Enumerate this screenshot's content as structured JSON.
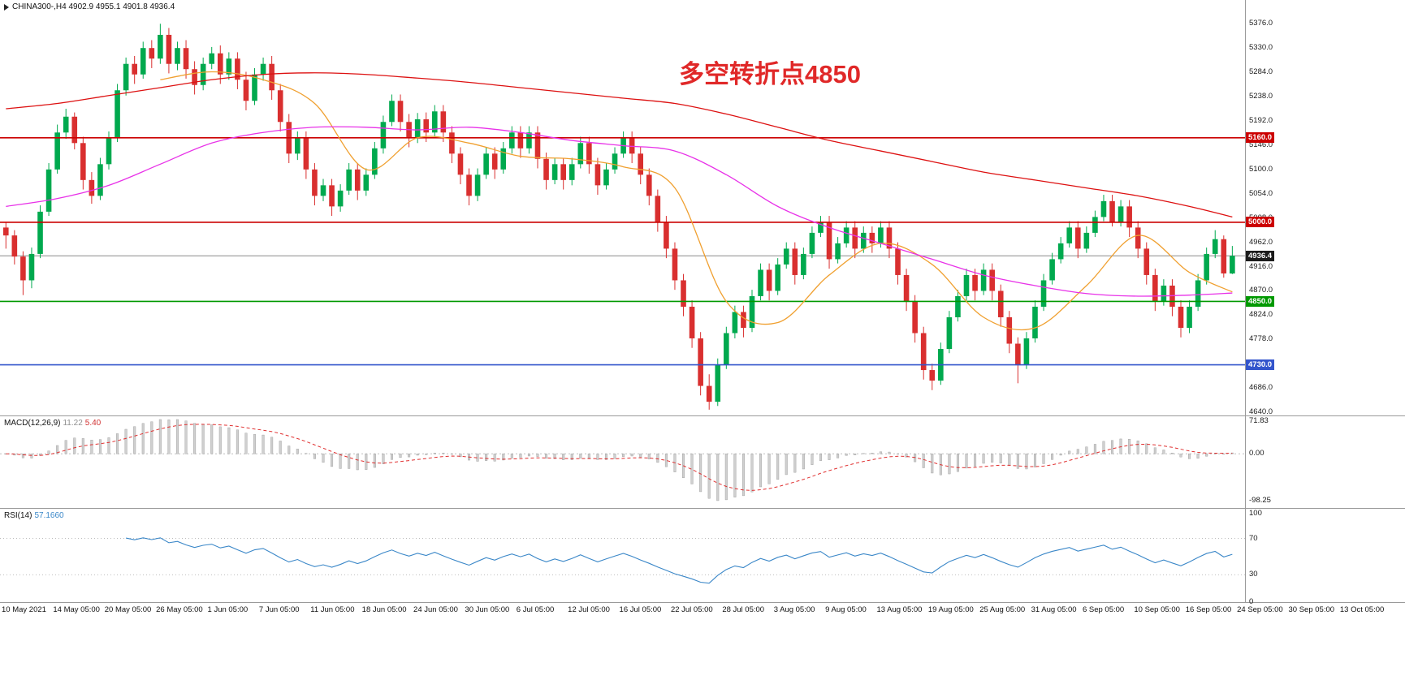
{
  "quote_bar": {
    "display": "CHINA300-,H4 4902.9 4955.1 4901.8 4936.4"
  },
  "annotation": {
    "text": "多空转折点4850",
    "color": "#e02828"
  },
  "indicators": {
    "macd": {
      "title": "MACD(12,26,9)",
      "value_main": "11.22",
      "value_signal": "5.40"
    },
    "rsi": {
      "title": "RSI(14)",
      "value": "57.1660"
    }
  },
  "chart_data": {
    "type": "candlestick",
    "title": "CHINA300-,H4",
    "xlabel": "",
    "ylabel": "",
    "ylim": [
      4634,
      5421
    ],
    "y_ticks": [
      5376,
      5330,
      5284,
      5238,
      5192,
      5146,
      5100,
      5054,
      5008,
      4962,
      4916,
      4870,
      4824,
      4778,
      4732,
      4686,
      4640
    ],
    "x_labels": [
      "10 May 2021",
      "14 May 05:00",
      "20 May 05:00",
      "26 May 05:00",
      "1 Jun 05:00",
      "7 Jun 05:00",
      "11 Jun 05:00",
      "18 Jun 05:00",
      "24 Jun 05:00",
      "30 Jun 05:00",
      "6 Jul 05:00",
      "12 Jul 05:00",
      "16 Jul 05:00",
      "22 Jul 05:00",
      "28 Jul 05:00",
      "3 Aug 05:00",
      "9 Aug 05:00",
      "13 Aug 05:00",
      "19 Aug 05:00",
      "25 Aug 05:00",
      "31 Aug 05:00",
      "6 Sep 05:00",
      "10 Sep 05:00",
      "16 Sep 05:00",
      "24 Sep 05:00",
      "30 Sep 05:00",
      "13 Oct 05:00"
    ],
    "ohlc": [
      [
        4990,
        5000,
        4950,
        4975
      ],
      [
        4975,
        4985,
        4920,
        4935
      ],
      [
        4935,
        4945,
        4862,
        4890
      ],
      [
        4890,
        4952,
        4875,
        4940
      ],
      [
        4940,
        5032,
        4932,
        5020
      ],
      [
        5020,
        5112,
        5012,
        5100
      ],
      [
        5100,
        5185,
        5092,
        5170
      ],
      [
        5170,
        5215,
        5158,
        5200
      ],
      [
        5200,
        5208,
        5138,
        5150
      ],
      [
        5150,
        5162,
        5062,
        5080
      ],
      [
        5080,
        5095,
        5035,
        5050
      ],
      [
        5050,
        5122,
        5042,
        5110
      ],
      [
        5110,
        5172,
        5100,
        5160
      ],
      [
        5160,
        5262,
        5152,
        5250
      ],
      [
        5250,
        5312,
        5240,
        5300
      ],
      [
        5300,
        5315,
        5262,
        5280
      ],
      [
        5280,
        5342,
        5272,
        5330
      ],
      [
        5330,
        5345,
        5292,
        5310
      ],
      [
        5310,
        5376,
        5300,
        5355
      ],
      [
        5355,
        5368,
        5282,
        5300
      ],
      [
        5300,
        5342,
        5288,
        5330
      ],
      [
        5330,
        5345,
        5272,
        5290
      ],
      [
        5290,
        5305,
        5242,
        5260
      ],
      [
        5260,
        5312,
        5250,
        5300
      ],
      [
        5300,
        5332,
        5290,
        5320
      ],
      [
        5320,
        5335,
        5262,
        5280
      ],
      [
        5280,
        5322,
        5270,
        5310
      ],
      [
        5310,
        5322,
        5252,
        5270
      ],
      [
        5270,
        5285,
        5212,
        5230
      ],
      [
        5230,
        5292,
        5222,
        5280
      ],
      [
        5280,
        5312,
        5268,
        5300
      ],
      [
        5300,
        5315,
        5232,
        5250
      ],
      [
        5250,
        5262,
        5172,
        5190
      ],
      [
        5190,
        5205,
        5112,
        5130
      ],
      [
        5130,
        5172,
        5118,
        5160
      ],
      [
        5160,
        5172,
        5082,
        5100
      ],
      [
        5100,
        5112,
        5032,
        5050
      ],
      [
        5050,
        5082,
        5040,
        5070
      ],
      [
        5070,
        5082,
        5012,
        5030
      ],
      [
        5030,
        5072,
        5020,
        5060
      ],
      [
        5060,
        5112,
        5052,
        5100
      ],
      [
        5100,
        5112,
        5042,
        5060
      ],
      [
        5060,
        5102,
        5050,
        5090
      ],
      [
        5090,
        5152,
        5082,
        5140
      ],
      [
        5140,
        5202,
        5130,
        5190
      ],
      [
        5190,
        5242,
        5182,
        5230
      ],
      [
        5230,
        5242,
        5172,
        5190
      ],
      [
        5190,
        5205,
        5142,
        5160
      ],
      [
        5160,
        5207,
        5150,
        5195
      ],
      [
        5195,
        5208,
        5152,
        5170
      ],
      [
        5170,
        5222,
        5162,
        5210
      ],
      [
        5210,
        5222,
        5152,
        5170
      ],
      [
        5170,
        5182,
        5112,
        5130
      ],
      [
        5130,
        5142,
        5072,
        5090
      ],
      [
        5090,
        5102,
        5032,
        5050
      ],
      [
        5050,
        5102,
        5040,
        5090
      ],
      [
        5090,
        5142,
        5082,
        5130
      ],
      [
        5130,
        5142,
        5082,
        5100
      ],
      [
        5100,
        5152,
        5092,
        5140
      ],
      [
        5140,
        5182,
        5130,
        5170
      ],
      [
        5170,
        5182,
        5122,
        5140
      ],
      [
        5140,
        5182,
        5130,
        5170
      ],
      [
        5170,
        5182,
        5102,
        5120
      ],
      [
        5120,
        5132,
        5062,
        5080
      ],
      [
        5080,
        5122,
        5072,
        5110
      ],
      [
        5110,
        5122,
        5062,
        5080
      ],
      [
        5080,
        5122,
        5070,
        5110
      ],
      [
        5110,
        5162,
        5102,
        5150
      ],
      [
        5150,
        5162,
        5092,
        5110
      ],
      [
        5110,
        5122,
        5052,
        5070
      ],
      [
        5070,
        5112,
        5062,
        5100
      ],
      [
        5100,
        5142,
        5092,
        5130
      ],
      [
        5130,
        5172,
        5122,
        5160
      ],
      [
        5160,
        5172,
        5112,
        5130
      ],
      [
        5130,
        5142,
        5072,
        5090
      ],
      [
        5090,
        5102,
        5032,
        5050
      ],
      [
        5050,
        5062,
        4982,
        5000
      ],
      [
        5000,
        5012,
        4932,
        4950
      ],
      [
        4950,
        4962,
        4872,
        4890
      ],
      [
        4890,
        4902,
        4822,
        4840
      ],
      [
        4840,
        4852,
        4762,
        4780
      ],
      [
        4780,
        4792,
        4672,
        4690
      ],
      [
        4690,
        4712,
        4645,
        4660
      ],
      [
        4660,
        4742,
        4652,
        4730
      ],
      [
        4730,
        4802,
        4722,
        4790
      ],
      [
        4790,
        4842,
        4780,
        4830
      ],
      [
        4830,
        4842,
        4782,
        4800
      ],
      [
        4800,
        4872,
        4792,
        4860
      ],
      [
        4860,
        4922,
        4852,
        4910
      ],
      [
        4910,
        4922,
        4852,
        4870
      ],
      [
        4870,
        4932,
        4862,
        4920
      ],
      [
        4920,
        4962,
        4912,
        4950
      ],
      [
        4950,
        4962,
        4882,
        4900
      ],
      [
        4900,
        4952,
        4892,
        4940
      ],
      [
        4940,
        4992,
        4932,
        4980
      ],
      [
        4980,
        5012,
        4972,
        5000
      ],
      [
        5000,
        5012,
        4912,
        4930
      ],
      [
        4930,
        4972,
        4922,
        4960
      ],
      [
        4960,
        5002,
        4952,
        4990
      ],
      [
        4990,
        5002,
        4932,
        4950
      ],
      [
        4950,
        4992,
        4942,
        4980
      ],
      [
        4980,
        4992,
        4942,
        4960
      ],
      [
        4960,
        5002,
        4952,
        4990
      ],
      [
        4990,
        5002,
        4932,
        4950
      ],
      [
        4950,
        4962,
        4882,
        4900
      ],
      [
        4900,
        4912,
        4832,
        4850
      ],
      [
        4850,
        4862,
        4772,
        4790
      ],
      [
        4790,
        4802,
        4702,
        4720
      ],
      [
        4720,
        4732,
        4682,
        4700
      ],
      [
        4700,
        4772,
        4692,
        4760
      ],
      [
        4760,
        4832,
        4752,
        4820
      ],
      [
        4820,
        4872,
        4812,
        4860
      ],
      [
        4860,
        4912,
        4852,
        4900
      ],
      [
        4900,
        4912,
        4852,
        4870
      ],
      [
        4870,
        4922,
        4862,
        4910
      ],
      [
        4910,
        4922,
        4852,
        4870
      ],
      [
        4870,
        4882,
        4802,
        4820
      ],
      [
        4820,
        4832,
        4752,
        4770
      ],
      [
        4770,
        4782,
        4695,
        4730
      ],
      [
        4730,
        4792,
        4722,
        4780
      ],
      [
        4780,
        4852,
        4772,
        4840
      ],
      [
        4840,
        4902,
        4832,
        4890
      ],
      [
        4890,
        4942,
        4882,
        4930
      ],
      [
        4930,
        4972,
        4922,
        4960
      ],
      [
        4960,
        5002,
        4952,
        4990
      ],
      [
        4990,
        5002,
        4932,
        4950
      ],
      [
        4950,
        4992,
        4942,
        4980
      ],
      [
        4980,
        5022,
        4972,
        5010
      ],
      [
        5010,
        5052,
        5002,
        5040
      ],
      [
        5040,
        5052,
        4992,
        5000
      ],
      [
        5000,
        5042,
        4992,
        5030
      ],
      [
        5030,
        5042,
        4972,
        4990
      ],
      [
        4990,
        5002,
        4932,
        4950
      ],
      [
        4950,
        4962,
        4882,
        4900
      ],
      [
        4900,
        4912,
        4832,
        4850
      ],
      [
        4850,
        4892,
        4842,
        4880
      ],
      [
        4880,
        4892,
        4822,
        4840
      ],
      [
        4840,
        4852,
        4782,
        4800
      ],
      [
        4800,
        4852,
        4790,
        4840
      ],
      [
        4840,
        4902,
        4832,
        4890
      ],
      [
        4890,
        4952,
        4882,
        4940
      ],
      [
        4940,
        4985,
        4932,
        4968
      ],
      [
        4968,
        4975,
        4895,
        4903
      ],
      [
        4902.9,
        4955.1,
        4901.8,
        4936.4
      ]
    ],
    "overlays": [
      {
        "name": "ma-fast-line",
        "color": "#f0a030",
        "values": [
          null,
          null,
          null,
          5270,
          5285,
          5270,
          5225,
          5100,
          5160,
          5150,
          5125,
          5120,
          5105,
          5065,
          4850,
          4810,
          4900,
          4960,
          4920,
          4820,
          4800,
          4880,
          4975,
          4905,
          4868
        ]
      },
      {
        "name": "ma-mid-line",
        "color": "#e832e8",
        "values": [
          5030,
          5045,
          5070,
          5110,
          5150,
          5170,
          5180,
          5180,
          5175,
          5180,
          5170,
          5155,
          5145,
          5135,
          5090,
          5030,
          4990,
          4960,
          4930,
          4900,
          4880,
          4865,
          4860,
          4862,
          4866
        ]
      },
      {
        "name": "ma-slow-line",
        "color": "#dd1111",
        "values": [
          5215,
          5225,
          5240,
          5255,
          5270,
          5280,
          5283,
          5280,
          5273,
          5265,
          5255,
          5245,
          5235,
          5225,
          5205,
          5180,
          5155,
          5135,
          5115,
          5095,
          5080,
          5065,
          5050,
          5030,
          5010
        ]
      }
    ],
    "levels": [
      {
        "value": 5160.0,
        "label": "5160.0",
        "color": "#cc0000",
        "current": false
      },
      {
        "value": 5000.0,
        "label": "5000.0",
        "color": "#cc0000",
        "current": false
      },
      {
        "value": 4936.4,
        "label": "4936.4",
        "color": "#1c1c1c",
        "current": true
      },
      {
        "value": 4850.0,
        "label": "4850.0",
        "color": "#009900",
        "current": false
      },
      {
        "value": 4730.0,
        "label": "4730.0",
        "color": "#3355cc",
        "current": false
      }
    ],
    "macd": {
      "params": [
        12,
        26,
        9
      ],
      "ticks": [
        71.83,
        0,
        -98.25
      ],
      "ylim": [
        -113.6,
        80.3
      ]
    },
    "rsi": {
      "period": 14,
      "ticks": [
        100,
        70,
        30,
        0
      ],
      "ylim": [
        0,
        103.5
      ],
      "levels": [
        70,
        30
      ]
    },
    "colors": {
      "up": "#00a94e",
      "down": "#d92f2f",
      "macd_hist": "#cfcfcf",
      "macd_hist_edge": "#9a9a9a",
      "macd_signal": "#e03030",
      "rsi_line": "#3a87c8",
      "axis": "#9a9a9a",
      "current_line": "#8a8a8a",
      "grid_dot": "#bdbdbd"
    }
  }
}
